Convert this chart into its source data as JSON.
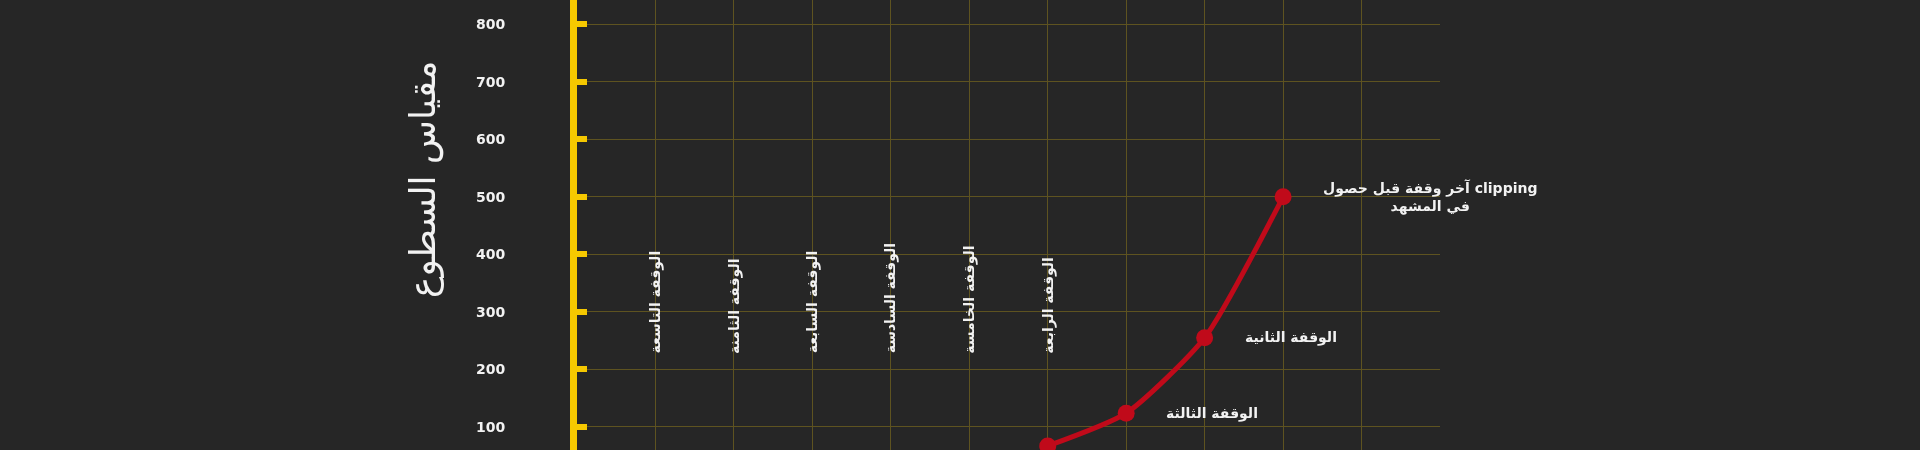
{
  "chart_data": {
    "type": "line",
    "ylabel": "مقياس السطوع",
    "categories": [
      null,
      "الوقفة التاسعة",
      "الوقفة الثامنة",
      "الوقفة السابعة",
      "الوقفة السادسة",
      "الوقفة الخامسة",
      "الوقفة الرابعة",
      null,
      null,
      null,
      null,
      null
    ],
    "annotations": [
      "الوقفة الثالثة",
      "الوقفة الثانية",
      "آخر وقفة قبل حصول clipping\nفي المشهد"
    ],
    "ylim": [
      60,
      842
    ],
    "yticks": [
      100,
      200,
      300,
      400,
      500,
      600,
      700,
      800
    ],
    "grid": true,
    "line_style": "solid",
    "marker": "circle",
    "series": [
      {
        "color": "#c00a1a",
        "values": [
          null,
          null,
          null,
          null,
          null,
          null,
          67,
          124,
          255,
          500,
          null,
          null
        ]
      }
    ]
  }
}
